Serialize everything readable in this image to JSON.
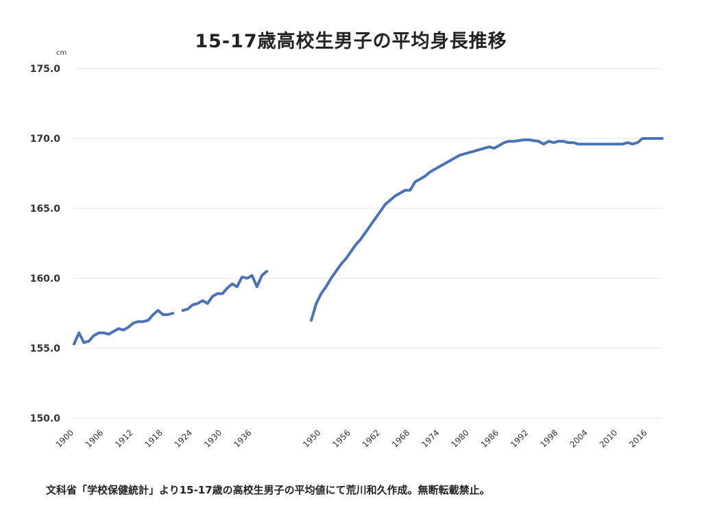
{
  "title": "15-17歳高校生男子の平均身長推移",
  "unit": "cm",
  "caption": "文科省「学校保健統計」より15-17歳の高校生男子の平均値にて荒川和久作成。無断転載禁止。",
  "colors": {
    "line": "#4a72b8",
    "grid": "#e4e4e4",
    "text": "#333333"
  },
  "chart_data": {
    "type": "line",
    "title": "15-17歳高校生男子の平均身長推移",
    "ylabel": "cm",
    "xlabel": "",
    "ylim": [
      150,
      175
    ],
    "xlim": [
      1900,
      2019
    ],
    "grid": true,
    "legend": "none",
    "y_ticks": [
      "150.0",
      "155.0",
      "160.0",
      "165.0",
      "170.0",
      "175.0"
    ],
    "x_ticks": [
      "1900",
      "1906",
      "1912",
      "1918",
      "1924",
      "1930",
      "1936",
      "1950",
      "1956",
      "1962",
      "1968",
      "1974",
      "1980",
      "1986",
      "1992",
      "1998",
      "2004",
      "2010",
      "2016"
    ],
    "segments": [
      {
        "x": [
          1900,
          1901,
          1902,
          1903,
          1904,
          1905,
          1906,
          1907,
          1908,
          1909,
          1910,
          1911,
          1912,
          1913,
          1914,
          1915,
          1916,
          1917,
          1918,
          1919,
          1920
        ],
        "y": [
          155.3,
          156.1,
          155.4,
          155.5,
          155.9,
          156.1,
          156.1,
          156.0,
          156.2,
          156.4,
          156.3,
          156.5,
          156.8,
          156.9,
          156.9,
          157.0,
          157.4,
          157.7,
          157.4,
          157.4,
          157.5
        ]
      },
      {
        "x": [
          1922,
          1923,
          1924,
          1925,
          1926,
          1927,
          1928,
          1929,
          1930,
          1931,
          1932,
          1933,
          1934,
          1935,
          1936,
          1937,
          1938
        ],
        "y": [
          157.7,
          157.8,
          158.1,
          158.2,
          158.4,
          158.2,
          158.7,
          158.9,
          158.9,
          159.3,
          159.6,
          159.4,
          160.1,
          160.0,
          160.2,
          159.4,
          160.2
        ]
      },
      {
        "x": [
          1938,
          1939
        ],
        "y": [
          160.2,
          160.5
        ]
      },
      {
        "x": [
          1948,
          1949,
          1950,
          1951,
          1952,
          1953,
          1954,
          1955,
          1956,
          1957,
          1958,
          1959,
          1960,
          1961,
          1962,
          1963,
          1964,
          1965,
          1966,
          1967,
          1968,
          1969,
          1970,
          1971,
          1972,
          1973,
          1974,
          1975,
          1976,
          1977,
          1978,
          1979,
          1980,
          1981,
          1982,
          1983,
          1984,
          1985,
          1986,
          1987,
          1988,
          1989,
          1990,
          1991,
          1992,
          1993,
          1994,
          1995,
          1996,
          1997,
          1998,
          1999,
          2000,
          2001,
          2002,
          2003,
          2004,
          2005,
          2006,
          2007,
          2008,
          2009,
          2010,
          2011,
          2012,
          2013,
          2014,
          2015,
          2016,
          2017,
          2018,
          2019
        ],
        "y": [
          157.0,
          158.2,
          158.9,
          159.4,
          160.0,
          160.5,
          161.0,
          161.4,
          161.9,
          162.4,
          162.8,
          163.3,
          163.8,
          164.3,
          164.8,
          165.3,
          165.6,
          165.9,
          166.1,
          166.3,
          166.3,
          166.9,
          167.1,
          167.3,
          167.6,
          167.8,
          168.0,
          168.2,
          168.4,
          168.6,
          168.8,
          168.9,
          169.0,
          169.1,
          169.2,
          169.3,
          169.4,
          169.3,
          169.5,
          169.7,
          169.8,
          169.8,
          169.85,
          169.9,
          169.9,
          169.85,
          169.8,
          169.6,
          169.8,
          169.7,
          169.8,
          169.8,
          169.7,
          169.7,
          169.6,
          169.6,
          169.6,
          169.6,
          169.6,
          169.6,
          169.6,
          169.6,
          169.6,
          169.6,
          169.7,
          169.6,
          169.7,
          170.0,
          170.0,
          170.0,
          170.0,
          170.0
        ]
      }
    ]
  }
}
